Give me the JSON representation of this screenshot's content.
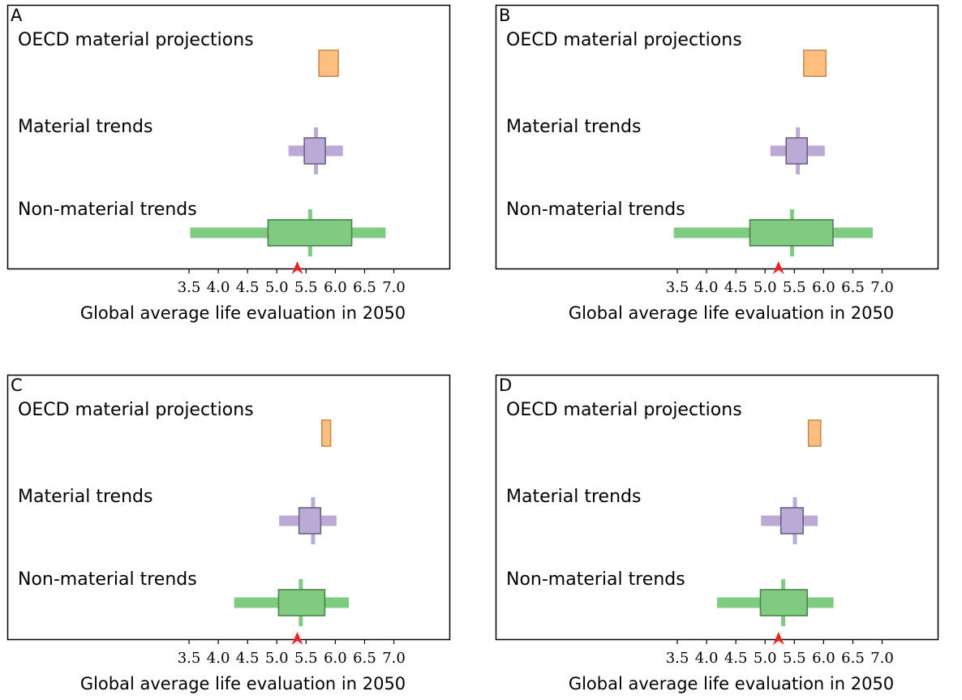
{
  "chart_data": [
    {
      "panel": "A",
      "type": "boxplot",
      "xlabel": "Global average life evaluation in 2050",
      "xlim": [
        3.0,
        7.0
      ],
      "xticks": [
        "3.5",
        "4.0",
        "4.5",
        "5.0",
        "5.5",
        "6.0",
        "6.5",
        "7.0"
      ],
      "marker": 5.35,
      "rows": [
        {
          "label": "OECD material projections",
          "color": "#fdbf80",
          "edge": "#c98a4b",
          "box": [
            5.72,
            6.05
          ]
        },
        {
          "label": "Material trends",
          "color": "#bcaad6",
          "edge": "#6d5f84",
          "whisker": [
            5.2,
            6.13
          ],
          "box": [
            5.47,
            5.83
          ],
          "median": 5.67
        },
        {
          "label": "Non-material trends",
          "color": "#7fcb7f",
          "edge": "#4f7f4f",
          "whisker": [
            3.52,
            6.86
          ],
          "box": [
            4.85,
            6.28
          ],
          "median": 5.57
        }
      ]
    },
    {
      "panel": "B",
      "type": "boxplot",
      "xlabel": "Global average life evaluation in 2050",
      "xlim": [
        3.0,
        7.0
      ],
      "xticks": [
        "3.5",
        "4.0",
        "4.5",
        "5.0",
        "5.5",
        "6.0",
        "6.5",
        "7.0"
      ],
      "marker": 5.23,
      "rows": [
        {
          "label": "OECD material projections",
          "color": "#fdbf80",
          "edge": "#c98a4b",
          "box": [
            5.66,
            6.04
          ]
        },
        {
          "label": "Material trends",
          "color": "#bcaad6",
          "edge": "#6d5f84",
          "whisker": [
            5.09,
            6.02
          ],
          "box": [
            5.36,
            5.72
          ],
          "median": 5.56
        },
        {
          "label": "Non-material trends",
          "color": "#7fcb7f",
          "edge": "#4f7f4f",
          "whisker": [
            3.44,
            6.84
          ],
          "box": [
            4.74,
            6.16
          ],
          "median": 5.46
        }
      ]
    },
    {
      "panel": "C",
      "type": "boxplot",
      "xlabel": "Global average life evaluation in 2050",
      "xlim": [
        3.0,
        7.0
      ],
      "xticks": [
        "3.5",
        "4.0",
        "4.5",
        "5.0",
        "5.5",
        "6.0",
        "6.5",
        "7.0"
      ],
      "marker": 5.35,
      "rows": [
        {
          "label": "OECD material projections",
          "color": "#fdbf80",
          "edge": "#c98a4b",
          "box": [
            5.77,
            5.92
          ]
        },
        {
          "label": "Material trends",
          "color": "#bcaad6",
          "edge": "#6d5f84",
          "whisker": [
            5.04,
            6.02
          ],
          "box": [
            5.38,
            5.75
          ],
          "median": 5.62
        },
        {
          "label": "Non-material trends",
          "color": "#7fcb7f",
          "edge": "#4f7f4f",
          "whisker": [
            4.27,
            6.23
          ],
          "box": [
            5.03,
            5.82
          ],
          "median": 5.41
        }
      ]
    },
    {
      "panel": "D",
      "type": "boxplot",
      "xlabel": "Global average life evaluation in 2050",
      "xlim": [
        3.0,
        7.0
      ],
      "xticks": [
        "3.5",
        "4.0",
        "4.5",
        "5.0",
        "5.5",
        "6.0",
        "6.5",
        "7.0"
      ],
      "marker": 5.23,
      "rows": [
        {
          "label": "OECD material projections",
          "color": "#fdbf80",
          "edge": "#c98a4b",
          "box": [
            5.74,
            5.95
          ]
        },
        {
          "label": "Material trends",
          "color": "#bcaad6",
          "edge": "#6d5f84",
          "whisker": [
            4.93,
            5.9
          ],
          "box": [
            5.27,
            5.65
          ],
          "median": 5.51
        },
        {
          "label": "Non-material trends",
          "color": "#7fcb7f",
          "edge": "#4f7f4f",
          "whisker": [
            4.18,
            6.17
          ],
          "box": [
            4.92,
            5.72
          ],
          "median": 5.31
        }
      ]
    }
  ],
  "marker_color": "#ee2222"
}
